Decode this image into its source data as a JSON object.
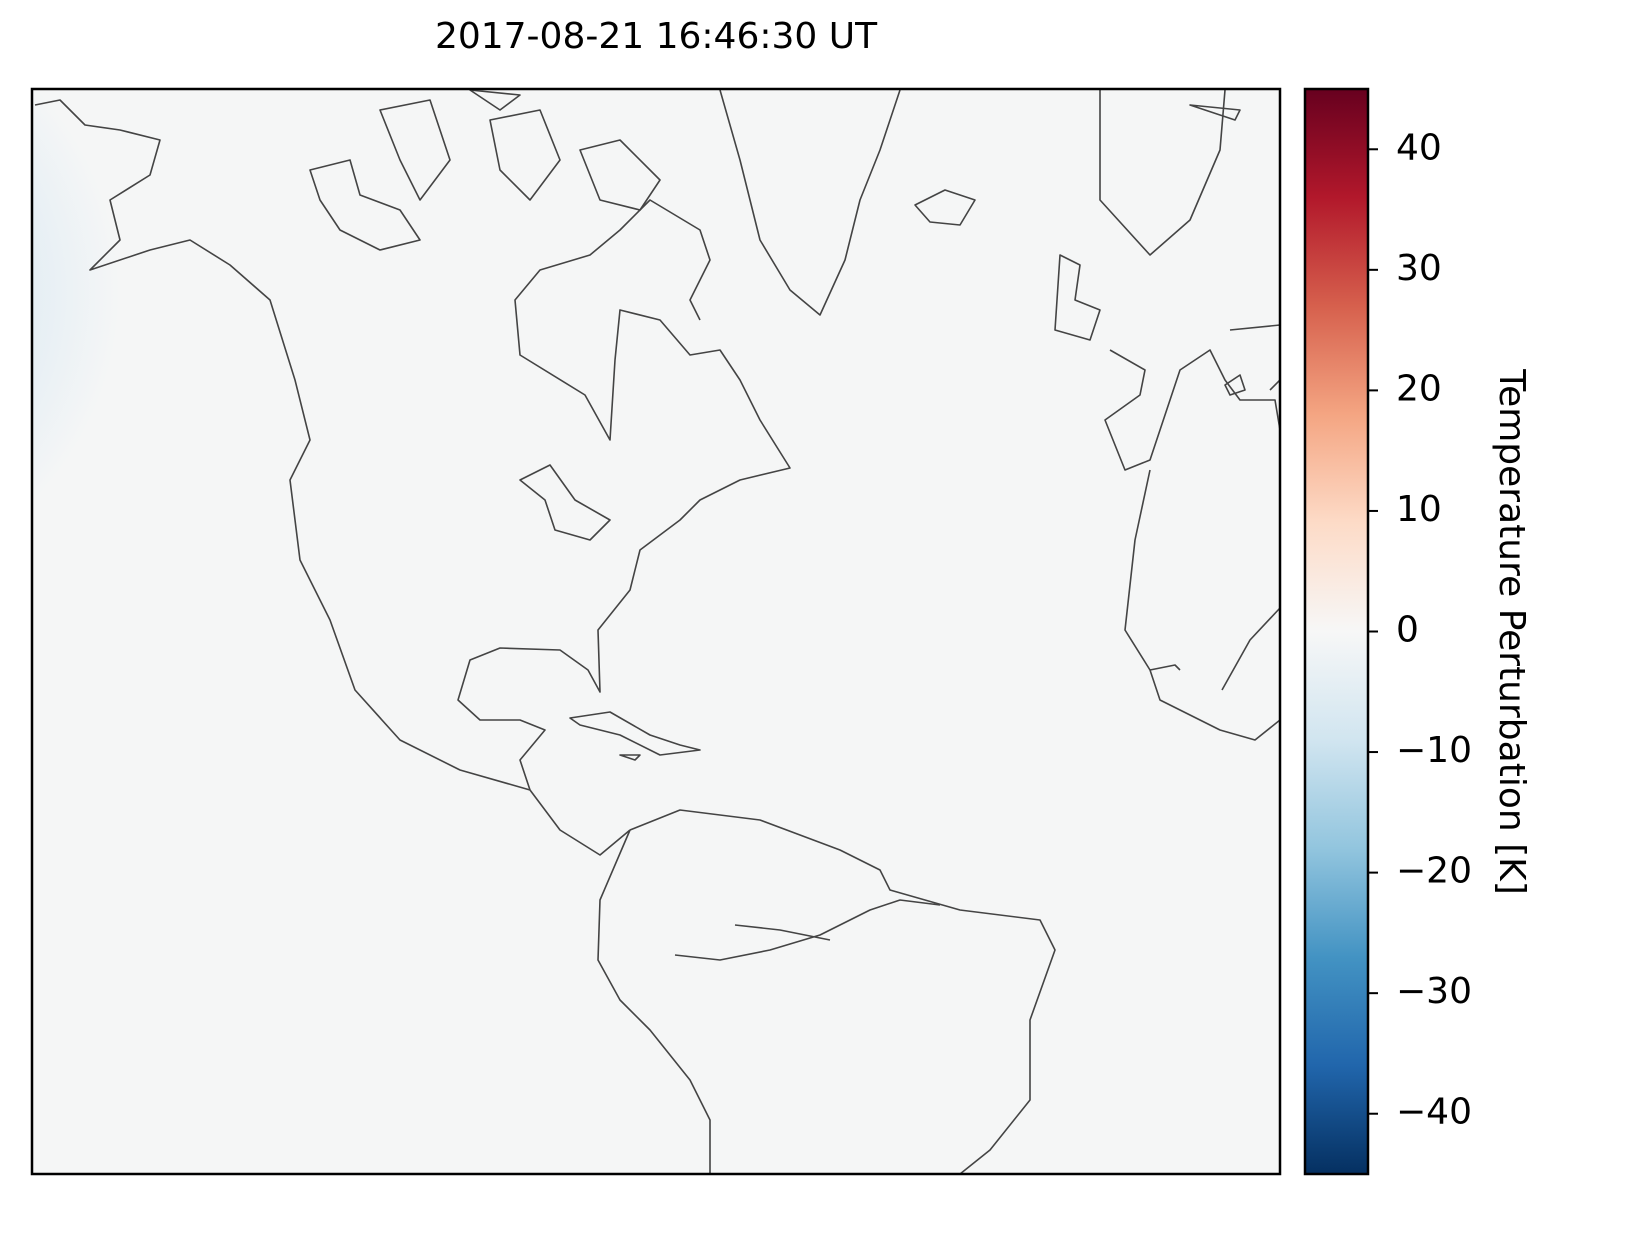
{
  "chart_data": {
    "type": "map",
    "title": "2017-08-21 16:46:30 UT",
    "colorbar": {
      "label": "Temperature Perturbation [K]",
      "lim": [
        -45,
        45
      ],
      "ticks": [
        40,
        30,
        20,
        10,
        0,
        {
          "value": -10,
          "label": "−10"
        },
        {
          "value": -20,
          "label": "−20"
        },
        {
          "value": -30,
          "label": "−30"
        },
        {
          "value": -40,
          "label": "−40"
        }
      ],
      "colormap": [
        "#053061",
        "#2166ac",
        "#4393c3",
        "#92c5de",
        "#d1e5f0",
        "#f7f7f7",
        "#fddbc7",
        "#f4a582",
        "#d6604d",
        "#b2182b",
        "#67001f"
      ]
    }
  }
}
